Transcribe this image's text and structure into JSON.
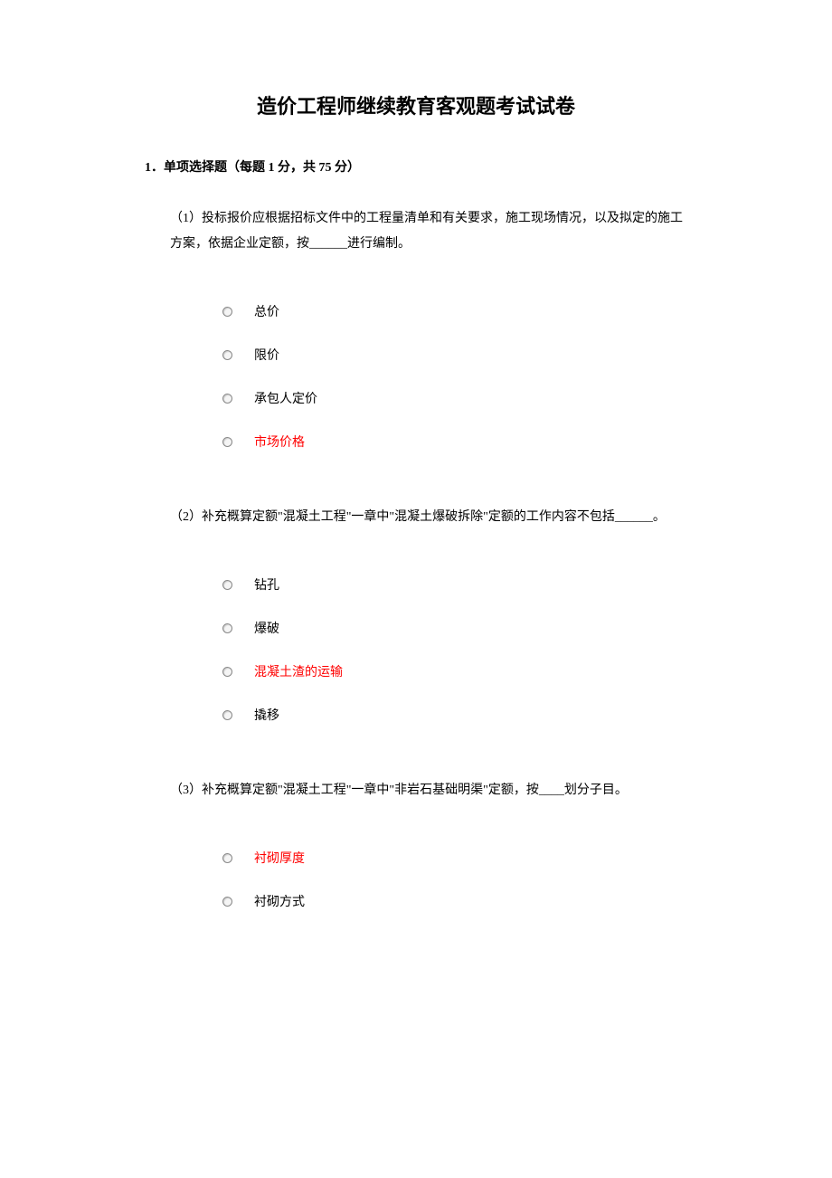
{
  "title": "造价工程师继续教育客观题考试试卷",
  "section_header": "1．单项选择题（每题 1 分，共 75 分）",
  "questions": [
    {
      "text": "（1）投标报价应根据招标文件中的工程量清单和有关要求，施工现场情况，以及拟定的施工方案，依据企业定额，按______进行编制。",
      "options": [
        {
          "label": "总价",
          "highlighted": false
        },
        {
          "label": "限价",
          "highlighted": false
        },
        {
          "label": "承包人定价",
          "highlighted": false
        },
        {
          "label": "市场价格",
          "highlighted": true
        }
      ]
    },
    {
      "text": "（2）补充概算定额\"混凝土工程\"一章中\"混凝土爆破拆除\"定额的工作内容不包括______。",
      "options": [
        {
          "label": "钻孔",
          "highlighted": false
        },
        {
          "label": "爆破",
          "highlighted": false
        },
        {
          "label": "混凝土渣的运输",
          "highlighted": true
        },
        {
          "label": "撬移",
          "highlighted": false
        }
      ]
    },
    {
      "text": "（3）补充概算定额\"混凝土工程\"一章中\"非岩石基础明渠\"定额，按____划分子目。",
      "options": [
        {
          "label": "衬砌厚度",
          "highlighted": true
        },
        {
          "label": "衬砌方式",
          "highlighted": false
        }
      ]
    }
  ],
  "colors": {
    "text": "#000000",
    "highlighted": "#ff0000",
    "background": "#ffffff",
    "radio_border": "#888888"
  },
  "typography": {
    "title_fontsize": 22,
    "body_fontsize": 14,
    "font_family": "SimSun"
  }
}
